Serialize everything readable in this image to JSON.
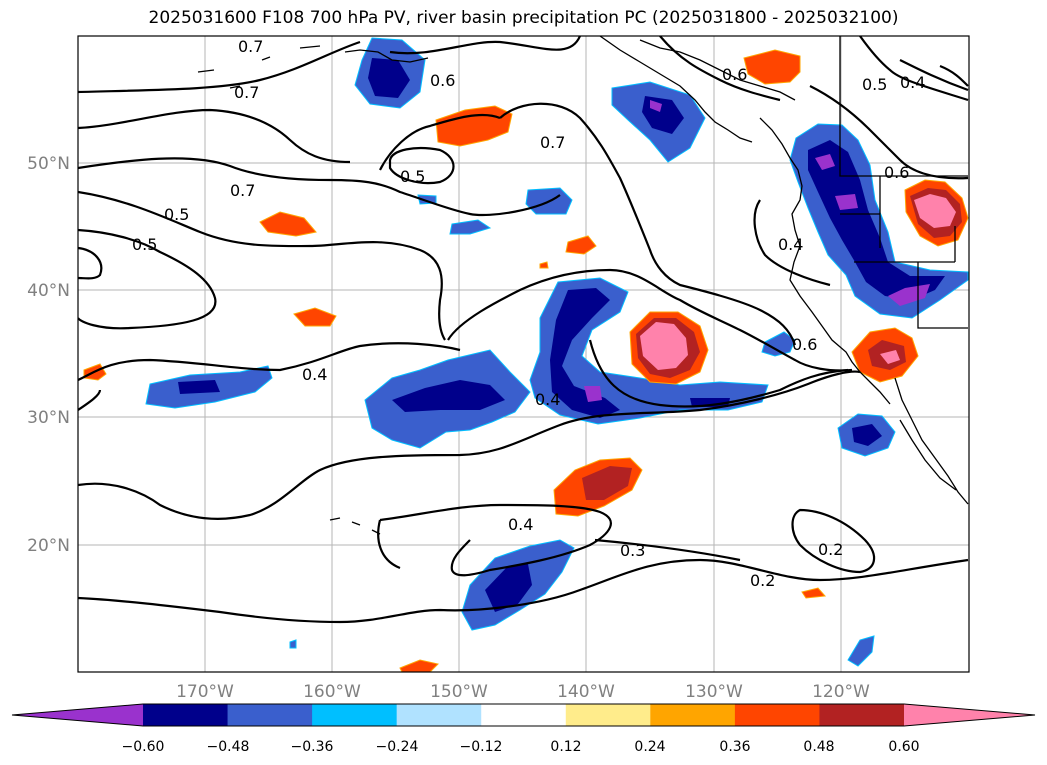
{
  "title": "2025031600 F108 700 hPa PV, river basin precipitation PC (2025031800 - 2025032100)",
  "map": {
    "lon_range": [
      -180,
      -110
    ],
    "lat_range": [
      10,
      60
    ],
    "lat_labels": [
      "50°N",
      "40°N",
      "30°N",
      "20°N"
    ],
    "lon_labels": [
      "170°W",
      "160°W",
      "150°W",
      "140°W",
      "130°W",
      "120°W"
    ],
    "contour_labels": [
      "0.7",
      "0.6",
      "0.7",
      "0.5",
      "0.7",
      "0.5",
      "0.5",
      "0.6",
      "0.5",
      "0.4",
      "0.7",
      "0.6",
      "0.4",
      "0.6",
      "0.4",
      "0.4",
      "0.4",
      "0.3",
      "0.2",
      "0.2"
    ]
  },
  "colorbar": {
    "ticks": [
      "−0.60",
      "−0.48",
      "−0.36",
      "−0.24",
      "−0.12",
      "0.12",
      "0.24",
      "0.36",
      "0.48",
      "0.60"
    ],
    "colors": [
      "#9a32cd",
      "#00008b",
      "#3a5fcd",
      "#00bfff",
      "#b0e2ff",
      "#ffffff",
      "#ffec8b",
      "#ffa500",
      "#ff4500",
      "#b22222",
      "#ff82ab"
    ]
  }
}
